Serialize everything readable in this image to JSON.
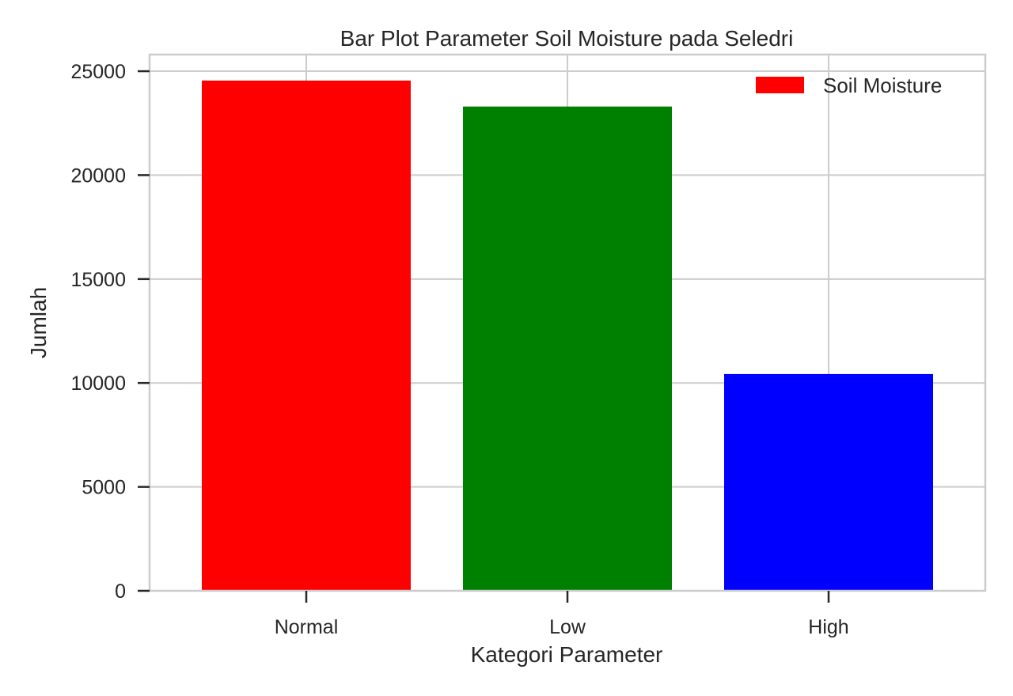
{
  "chart_data": {
    "type": "bar",
    "title": "Bar Plot Parameter Soil Moisture pada Seledri",
    "xlabel": "Kategori Parameter",
    "ylabel": "Jumlah",
    "categories": [
      "Normal",
      "Low",
      "High"
    ],
    "values": [
      24550,
      23300,
      10430
    ],
    "colors": [
      "#ff0000",
      "#008000",
      "#0000ff"
    ],
    "ylim": [
      0,
      25800
    ],
    "yticks": [
      0,
      5000,
      10000,
      15000,
      20000,
      25000
    ],
    "ytick_labels": [
      "0",
      "5000",
      "10000",
      "15000",
      "20000",
      "25000"
    ],
    "grid": true,
    "legend": {
      "position": "top-right",
      "entries": [
        {
          "label": "Soil Moisture",
          "color": "#ff0000"
        }
      ]
    }
  }
}
